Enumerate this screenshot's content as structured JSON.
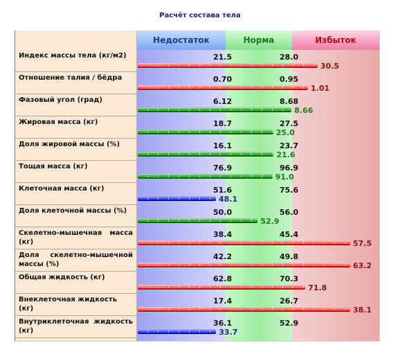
{
  "title": "Расчёт состава тела",
  "headers": {
    "under": "Недостаток",
    "norm": "Норма",
    "over": "Избыток"
  },
  "colors": {
    "under": "#1a3c8c",
    "norm": "#1a7a1a",
    "over": "#b01010"
  },
  "rows": [
    {
      "label": "Индекс массы тела (кг/м2)",
      "low": "21.5",
      "high": "28.0",
      "value": "30.5",
      "status": "red"
    },
    {
      "label": "Отношение талия / бёдра",
      "low": "0.70",
      "high": "0.95",
      "value": "1.01",
      "status": "red"
    },
    {
      "label": "Фазовый угол (град)",
      "low": "6.12",
      "high": "8.68",
      "value": "8.66",
      "status": "green"
    },
    {
      "label": "Жировая масса (кг)",
      "low": "18.7",
      "high": "27.5",
      "value": "25.0",
      "status": "green"
    },
    {
      "label": "Доля жировой массы (%)",
      "low": "16.1",
      "high": "23.7",
      "value": "21.6",
      "status": "green"
    },
    {
      "label": "Тощая масса (кг)",
      "low": "76.9",
      "high": "96.9",
      "value": "91.0",
      "status": "green"
    },
    {
      "label": "Клеточная масса (кг)",
      "low": "51.6",
      "high": "75.6",
      "value": "48.1",
      "status": "blue"
    },
    {
      "label": "Доля клеточной массы (%)",
      "low": "50.0",
      "high": "56.0",
      "value": "52.9",
      "status": "green"
    },
    {
      "label": "Скелетно-мышечная масса (кг)",
      "low": "38.4",
      "high": "45.4",
      "value": "57.5",
      "status": "red"
    },
    {
      "label": "Доля скелетно-мышечной массы (%)",
      "low": "42.2",
      "high": "49.8",
      "value": "63.2",
      "status": "red"
    },
    {
      "label": "Общая жидкость (кг)",
      "low": "62.8",
      "high": "70.3",
      "value": "71.8",
      "status": "red"
    },
    {
      "label": "Внеклеточная жидкость (кг)",
      "low": "17.4",
      "high": "26.7",
      "value": "38.1",
      "status": "red"
    },
    {
      "label": "Внутриклеточная жидкость (кг)",
      "low": "36.1",
      "high": "52.9",
      "value": "33.7",
      "status": "blue"
    }
  ]
}
